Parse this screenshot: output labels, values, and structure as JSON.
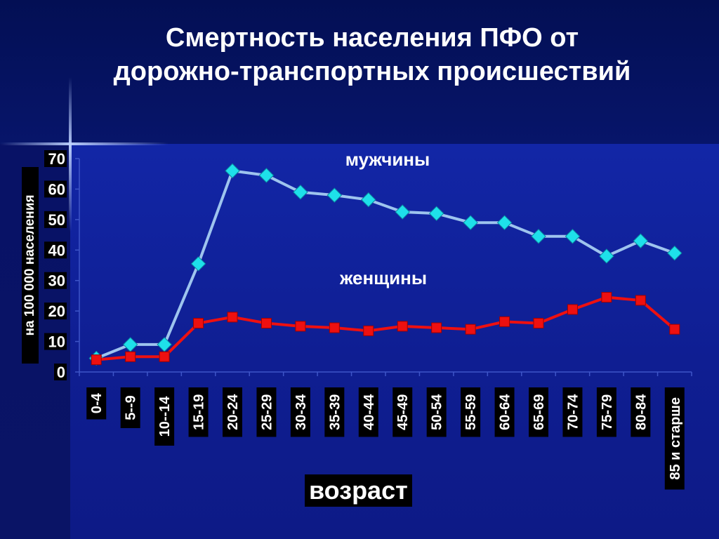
{
  "title_line1": "Смертность населения ПФО от",
  "title_line2": "дорожно-транспортных происшествий",
  "chart_data": {
    "type": "line",
    "ylabel": "на 100 000 населения",
    "xlabel": "возраст",
    "ylim": [
      0,
      70
    ],
    "yticks": [
      0,
      10,
      20,
      30,
      40,
      50,
      60,
      70
    ],
    "categories": [
      "0-4",
      "5--9",
      "10--14",
      "15-19",
      "20-24",
      "25-29",
      "30-34",
      "35-39",
      "40-44",
      "45-49",
      "50-54",
      "55-59",
      "60-64",
      "65-69",
      "70-74",
      "75-79",
      "80-84",
      "85 и старше"
    ],
    "series": [
      {
        "name": "мужчины",
        "color": "#9ec4ee",
        "marker_color": "#1ee0ea",
        "marker": "diamond",
        "values": [
          4.5,
          9,
          9,
          35.5,
          66,
          64.5,
          59,
          58,
          56.5,
          52.5,
          52,
          49,
          49,
          44.5,
          44.5,
          38,
          43,
          39
        ]
      },
      {
        "name": "женщины",
        "color": "#ee1010",
        "marker_color": "#ee1010",
        "marker": "square",
        "values": [
          4,
          5,
          5,
          16,
          18,
          16,
          15,
          14.5,
          13.5,
          15,
          14.5,
          14,
          16.5,
          16,
          20.5,
          24.5,
          23.5,
          14
        ]
      }
    ],
    "grid": false,
    "legend": "inline labels near lines"
  }
}
